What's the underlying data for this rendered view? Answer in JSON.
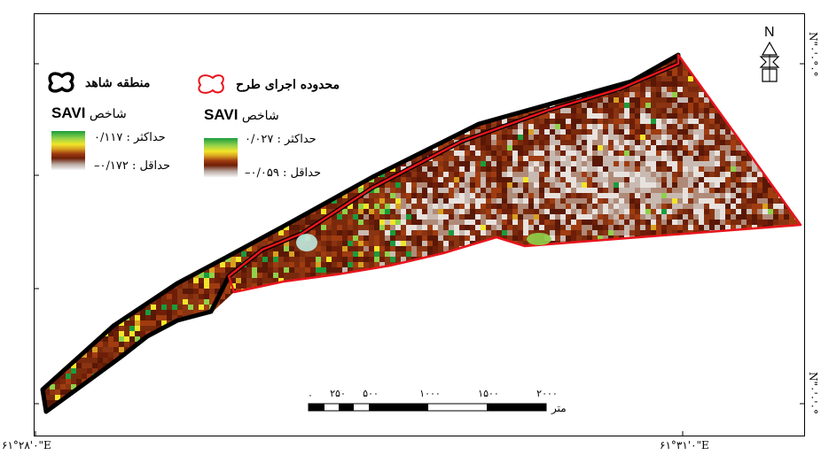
{
  "legend_observed": {
    "area_label": "منطقه شاهد",
    "index_label": "شاخص",
    "index_name": "SAVI",
    "max_label": "حداکثر : ۰/۱۱۷",
    "min_label": "حداقل : ۰/۱۷۲–"
  },
  "legend_project": {
    "area_label": "محدوده اجرای طرح",
    "index_label": "شاخص",
    "index_name": "SAVI",
    "max_label": "حداکثر : ۰/۰۲۷",
    "min_label": "حداقل : ۰/۰۵۹–"
  },
  "scale_bar": {
    "unit": "متر",
    "labels": [
      "۰",
      "۲۵۰",
      "۵۰۰",
      "۱۰۰۰",
      "۱۵۰۰",
      "۲۰۰۰"
    ]
  },
  "north_arrow": "N",
  "coords": {
    "bottom_left": "۶۱°۲۸'۰\"E",
    "bottom_right": "۶۱°۳۱'۰\"E",
    "right_top": "N\"۰'۰°۰°",
    "right_bottom": "N\"۰'۰'۰°"
  },
  "colors": {
    "observed_outline": "#000000",
    "project_outline": "#e8141c",
    "ramp": [
      "#1a9c3c",
      "#8fd14a",
      "#f2e62a",
      "#d8a020",
      "#a03c10",
      "#6e1e08",
      "#b8a8a0",
      "#f5f5f5"
    ]
  }
}
